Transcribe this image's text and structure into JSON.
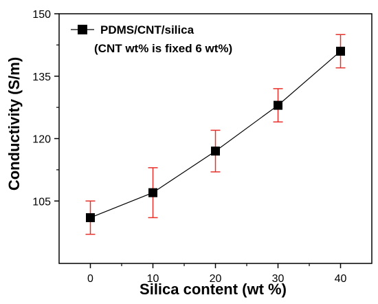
{
  "chart_data": {
    "type": "line",
    "title": "",
    "xlabel": "Silica content (wt %)",
    "ylabel": "Conductivity (S/m)",
    "xlim": [
      -5,
      45
    ],
    "ylim": [
      90,
      150
    ],
    "x_ticks": [
      0,
      10,
      20,
      30,
      40
    ],
    "y_ticks": [
      105,
      120,
      135,
      150
    ],
    "grid": false,
    "legend": {
      "placement": "top-left",
      "lines": [
        "PDMS/CNT/silica",
        "(CNT wt% is fixed 6 wt%)"
      ]
    },
    "series": [
      {
        "name": "PDMS/CNT/silica",
        "marker": "square",
        "color": "#000000",
        "error_color": "#e8302a",
        "x": [
          0,
          10,
          20,
          30,
          40
        ],
        "y": [
          101,
          107,
          117,
          128,
          141
        ],
        "err_low": [
          97,
          101,
          112,
          124,
          137
        ],
        "err_high": [
          105,
          113,
          122,
          132,
          145
        ]
      }
    ]
  }
}
